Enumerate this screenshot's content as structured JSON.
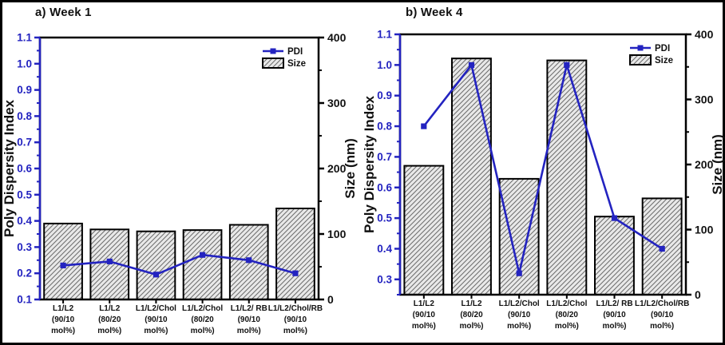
{
  "colors": {
    "pdi_blue": "#2323c0",
    "left_axis_blue": "#2323c0",
    "bar_fill": "#e9e9e9",
    "hatch_line": "#6b6b6b",
    "axis_black": "#000000",
    "text_black": "#111111"
  },
  "chart_data": [
    {
      "id": "week1",
      "type": "bar+line",
      "title": "a) Week 1",
      "categories": [
        [
          "L1/L2",
          "(90/10",
          "mol%)"
        ],
        [
          "L1/L2",
          "(80/20",
          "mol%)"
        ],
        [
          "L1/L2/Chol",
          "(90/10",
          "mol%)"
        ],
        [
          "L1/L2/Chol",
          "(80/20",
          "mol%)"
        ],
        [
          "L1/L2/ RB",
          "(90/10",
          "mol%)"
        ],
        [
          "L1/L2/Chol/RB",
          "(90/10",
          "mol%)"
        ]
      ],
      "series": [
        {
          "name": "PDI",
          "type": "line",
          "axis": "left",
          "values": [
            0.23,
            0.245,
            0.195,
            0.27,
            0.25,
            0.2
          ]
        },
        {
          "name": "Size",
          "type": "bar",
          "axis": "right",
          "values": [
            116,
            107,
            104,
            106,
            114,
            139
          ]
        }
      ],
      "left_axis": {
        "label": "Poly Dispersity Index",
        "min": 0.1,
        "max": 1.1,
        "ticks": [
          0.1,
          0.2,
          0.3,
          0.4,
          0.5,
          0.6,
          0.7,
          0.8,
          0.9,
          1.0,
          1.1
        ]
      },
      "right_axis": {
        "label": "Size (nm)",
        "min": 0,
        "max": 400,
        "ticks": [
          0,
          100,
          200,
          300,
          400
        ]
      },
      "legend_position": "top-right",
      "grid": "off"
    },
    {
      "id": "week4",
      "type": "bar+line",
      "title": "b) Week 4",
      "categories": [
        [
          "L1/L2",
          "(90/10",
          "mol%)"
        ],
        [
          "L1/L2",
          "(80/20",
          "mol%)"
        ],
        [
          "L1/L2/Chol",
          "(90/10",
          "mol%)"
        ],
        [
          "L1/L2/Chol",
          "(80/20",
          "mol%)"
        ],
        [
          "L1/L2/ RB",
          "(90/10",
          "mol%)"
        ],
        [
          "L1/L2/Chol/RB",
          "(90/10",
          "mol%)"
        ]
      ],
      "series": [
        {
          "name": "PDI",
          "type": "line",
          "axis": "left",
          "values": [
            0.8,
            1.0,
            0.32,
            1.0,
            0.5,
            0.4
          ]
        },
        {
          "name": "Size",
          "type": "bar",
          "axis": "right",
          "values": [
            198,
            363,
            178,
            360,
            120,
            148
          ]
        }
      ],
      "left_axis": {
        "label": "Poly Dispersity Index",
        "min": 0.25,
        "max": 1.1,
        "ticks": [
          0.3,
          0.4,
          0.5,
          0.6,
          0.7,
          0.8,
          0.9,
          1.0,
          1.1
        ]
      },
      "right_axis": {
        "label": "Size (nm)",
        "min": 0,
        "max": 400,
        "ticks": [
          0,
          100,
          200,
          300,
          400
        ]
      },
      "legend_position": "top-right",
      "grid": "off"
    }
  ]
}
